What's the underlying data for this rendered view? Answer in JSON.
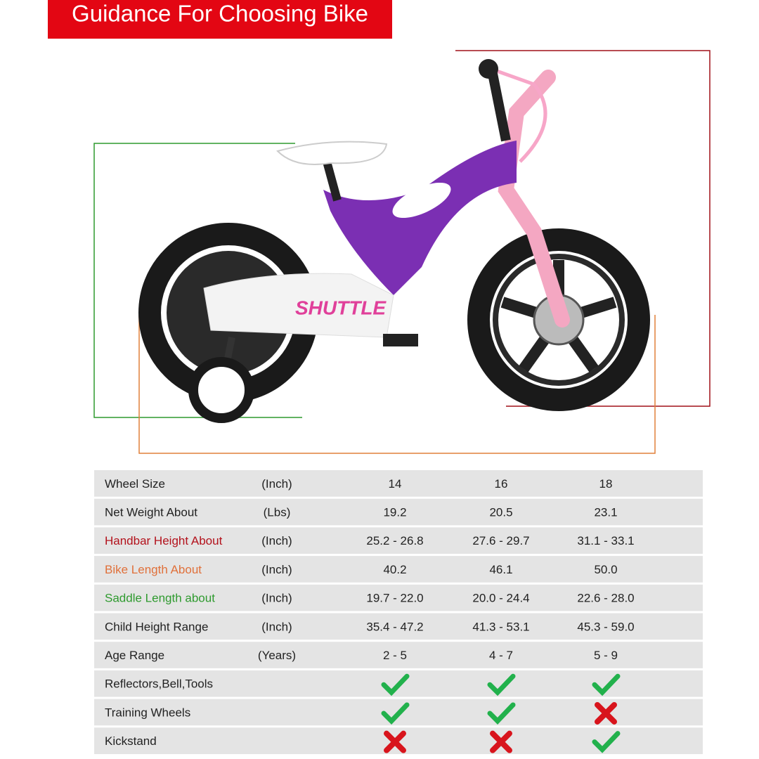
{
  "header": {
    "title": "Guidance For Choosing Bike"
  },
  "table": {
    "rows": [
      {
        "label": "Wheel Size",
        "unit": "(Inch)",
        "values": [
          "14",
          "16",
          "18"
        ]
      },
      {
        "label": "Net Weight About",
        "unit": "(Lbs)",
        "values": [
          "19.2",
          "20.5",
          "23.1"
        ]
      },
      {
        "label": "Handbar Height About",
        "label_color": "#b3121c",
        "unit": "(Inch)",
        "values": [
          "25.2 - 26.8",
          "27.6 - 29.7",
          "31.1 - 33.1"
        ]
      },
      {
        "label": "Bike Length About",
        "label_color": "#e0703a",
        "unit": "(Inch)",
        "values": [
          "40.2",
          "46.1",
          "50.0"
        ]
      },
      {
        "label": "Saddle Length about",
        "label_color": "#2e9a2e",
        "unit": "(Inch)",
        "values": [
          "19.7 - 22.0",
          "20.0 - 24.4",
          "22.6 - 28.0"
        ]
      },
      {
        "label": "Child Height Range",
        "unit": "(Inch)",
        "values": [
          "35.4 - 47.2",
          "41.3 - 53.1",
          "45.3 - 59.0"
        ]
      },
      {
        "label": "Age Range",
        "unit": "(Years)",
        "values": [
          "2 - 5",
          "4 - 7",
          "5 - 9"
        ]
      },
      {
        "label": "Reflectors,Bell,Tools",
        "values": [
          true,
          true,
          true
        ]
      },
      {
        "label": "Training Wheels",
        "values": [
          true,
          true,
          false
        ]
      },
      {
        "label": "Kickstand",
        "values": [
          false,
          false,
          true
        ]
      }
    ]
  }
}
